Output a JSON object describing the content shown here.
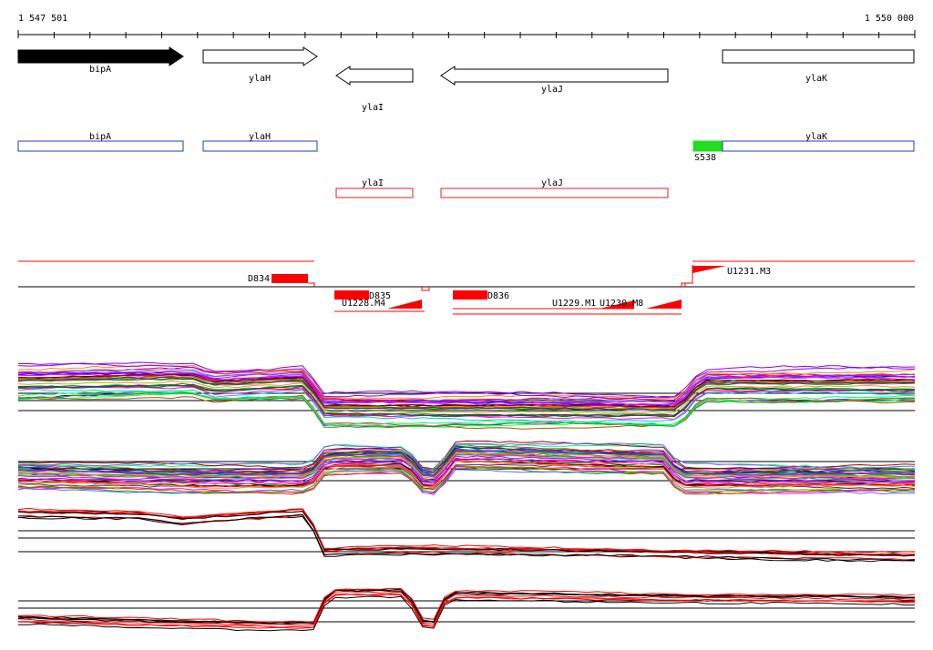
{
  "axis": {
    "start_label": "1 547 501",
    "end_label": "1 550 000",
    "start": 1547501,
    "end": 1550000
  },
  "genes": [
    {
      "id": "bipa",
      "label": "bipA",
      "from": 1547501,
      "to": 1547961,
      "strand": "+",
      "filled": true
    },
    {
      "id": "ylah",
      "label": "ylaH",
      "from": 1548017,
      "to": 1548336,
      "strand": "+",
      "filled": false
    },
    {
      "id": "ylai",
      "label": "ylaI",
      "from": 1548385,
      "to": 1548599,
      "strand": "-",
      "filled": false
    },
    {
      "id": "ylaj",
      "label": "ylaJ",
      "from": 1548679,
      "to": 1549316,
      "strand": "-",
      "filled": false
    },
    {
      "id": "ylak",
      "label": "ylaK",
      "from": 1549469,
      "to": 1550000,
      "strand": "+",
      "filled": false
    }
  ],
  "annotations": [
    {
      "id": "bipa",
      "label": "bipA",
      "from": 1547501,
      "to": 1547961,
      "color": "#1f3fb0",
      "row": 1
    },
    {
      "id": "ylah",
      "label": "ylaH",
      "from": 1548017,
      "to": 1548336,
      "color": "#1f3fb0",
      "row": 1
    },
    {
      "id": "ylak",
      "label": "ylaK",
      "from": 1549469,
      "to": 1550000,
      "color": "#1f3fb0",
      "row": 1
    },
    {
      "id": "ylai",
      "label": "ylaI",
      "from": 1548385,
      "to": 1548599,
      "color": "#e02020",
      "row": 2
    },
    {
      "id": "ylaj",
      "label": "ylaJ",
      "from": 1548679,
      "to": 1549316,
      "color": "#e02020",
      "row": 2
    }
  ],
  "s538": {
    "label": "S538",
    "from": 1549388,
    "to": 1549469,
    "color": "#22dd22"
  },
  "segment_labels": [
    {
      "id": "d834",
      "text": "D834"
    },
    {
      "id": "d835",
      "text": "D835"
    },
    {
      "id": "u1228",
      "text": "U1228.M4"
    },
    {
      "id": "d836",
      "text": "D836"
    },
    {
      "id": "u1229",
      "text": "U1229.M1"
    },
    {
      "id": "u1230",
      "text": "U1230.M8"
    },
    {
      "id": "u1231",
      "text": "U1231.M3"
    }
  ],
  "colors": {
    "gene_fill": "#000000",
    "feature_red": "#ff0000",
    "annotation_blue": "#1f3fb0",
    "annotation_red": "#e02020",
    "s538_green": "#22dd22"
  }
}
